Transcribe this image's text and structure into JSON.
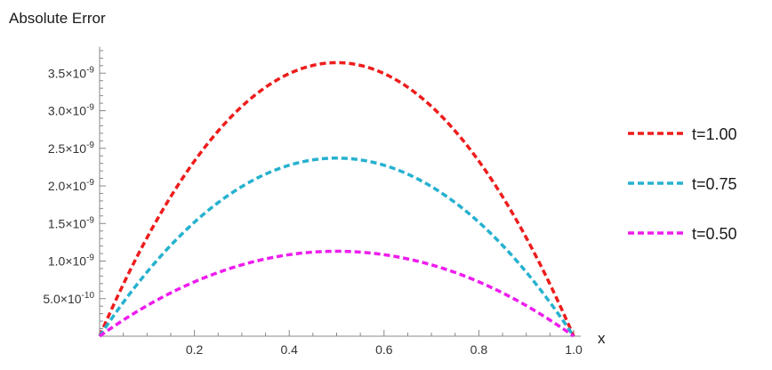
{
  "chart_data": {
    "type": "line",
    "ylabel": "Absolute Error",
    "xlabel": "x",
    "xlim": [
      0,
      1.0
    ],
    "ylim": [
      0,
      3.85e-09
    ],
    "x_ticks": [
      {
        "value": 0.2,
        "label": "0.2"
      },
      {
        "value": 0.4,
        "label": "0.4"
      },
      {
        "value": 0.6,
        "label": "0.6"
      },
      {
        "value": 0.8,
        "label": "0.8"
      },
      {
        "value": 1.0,
        "label": "1.0"
      }
    ],
    "y_ticks": [
      {
        "value": 5e-10,
        "mantissa": "5.0",
        "exponent": "-10"
      },
      {
        "value": 1e-09,
        "mantissa": "1.0",
        "exponent": "-9"
      },
      {
        "value": 1.5e-09,
        "mantissa": "1.5",
        "exponent": "-9"
      },
      {
        "value": 2e-09,
        "mantissa": "2.0",
        "exponent": "-9"
      },
      {
        "value": 2.5e-09,
        "mantissa": "2.5",
        "exponent": "-9"
      },
      {
        "value": 3e-09,
        "mantissa": "3.0",
        "exponent": "-9"
      },
      {
        "value": 3.5e-09,
        "mantissa": "3.5",
        "exponent": "-9"
      }
    ],
    "grid": false,
    "legend_position": "right",
    "line_style": "dashed",
    "shape": "parabola",
    "series": [
      {
        "name": "t=1.00",
        "color": "#ee1c1c",
        "peak_x": 0.5,
        "peak_y": 3.64e-09
      },
      {
        "name": "t=0.75",
        "color": "#26b1cf",
        "peak_x": 0.5,
        "peak_y": 2.37e-09
      },
      {
        "name": "t=0.50",
        "color": "#ee1cee",
        "peak_x": 0.5,
        "peak_y": 1.13e-09
      }
    ]
  }
}
